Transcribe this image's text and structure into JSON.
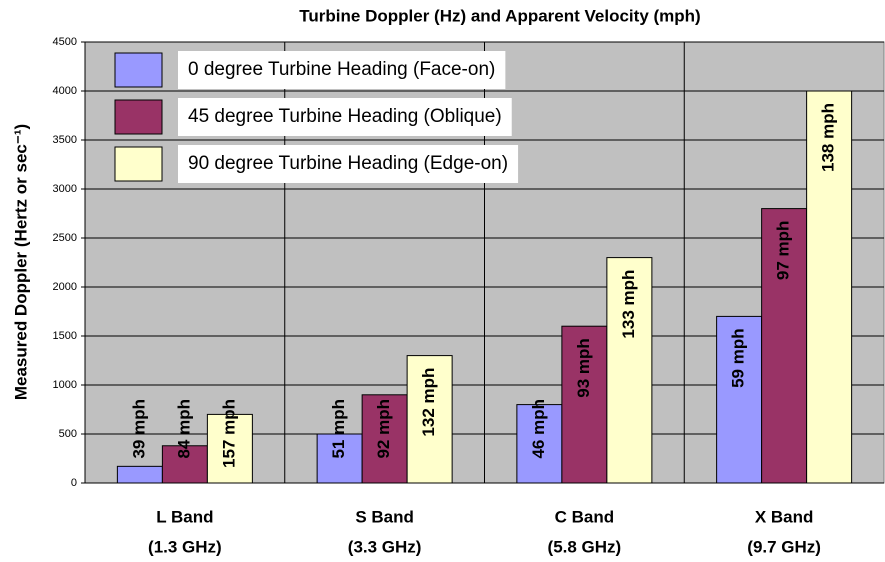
{
  "chart_data": {
    "type": "bar",
    "title": "Turbine Doppler (Hz) and Apparent Velocity (mph)",
    "ylabel": "Measured Doppler (Hertz or sec⁻¹)",
    "categories": [
      "L Band",
      "S Band",
      "C Band",
      "X Band"
    ],
    "category_sublabels": [
      "(1.3 GHz)",
      "(3.3 GHz)",
      "(5.8 GHz)",
      "(9.7 GHz)"
    ],
    "series": [
      {
        "name": "0 degree Turbine Heading (Face-on)",
        "color": "#9999ff",
        "values": [
          170,
          500,
          800,
          1700
        ],
        "bar_labels": [
          "39 mph",
          "51 mph",
          "46 mph",
          "59 mph"
        ]
      },
      {
        "name": "45 degree Turbine Heading (Oblique)",
        "color": "#993366",
        "values": [
          380,
          900,
          1600,
          2800
        ],
        "bar_labels": [
          "84 mph",
          "92 mph",
          "93 mph",
          "97 mph"
        ]
      },
      {
        "name": "90 degree Turbine Heading (Edge-on)",
        "color": "#ffffcc",
        "values": [
          700,
          1300,
          2300,
          4000
        ],
        "bar_labels": [
          "157 mph",
          "132 mph",
          "133 mph",
          "138 mph"
        ]
      }
    ],
    "ylim": [
      0,
      4500
    ],
    "yticks": [
      0,
      500,
      1000,
      1500,
      2000,
      2500,
      3000,
      3500,
      4000,
      4500
    ],
    "grid": true
  }
}
